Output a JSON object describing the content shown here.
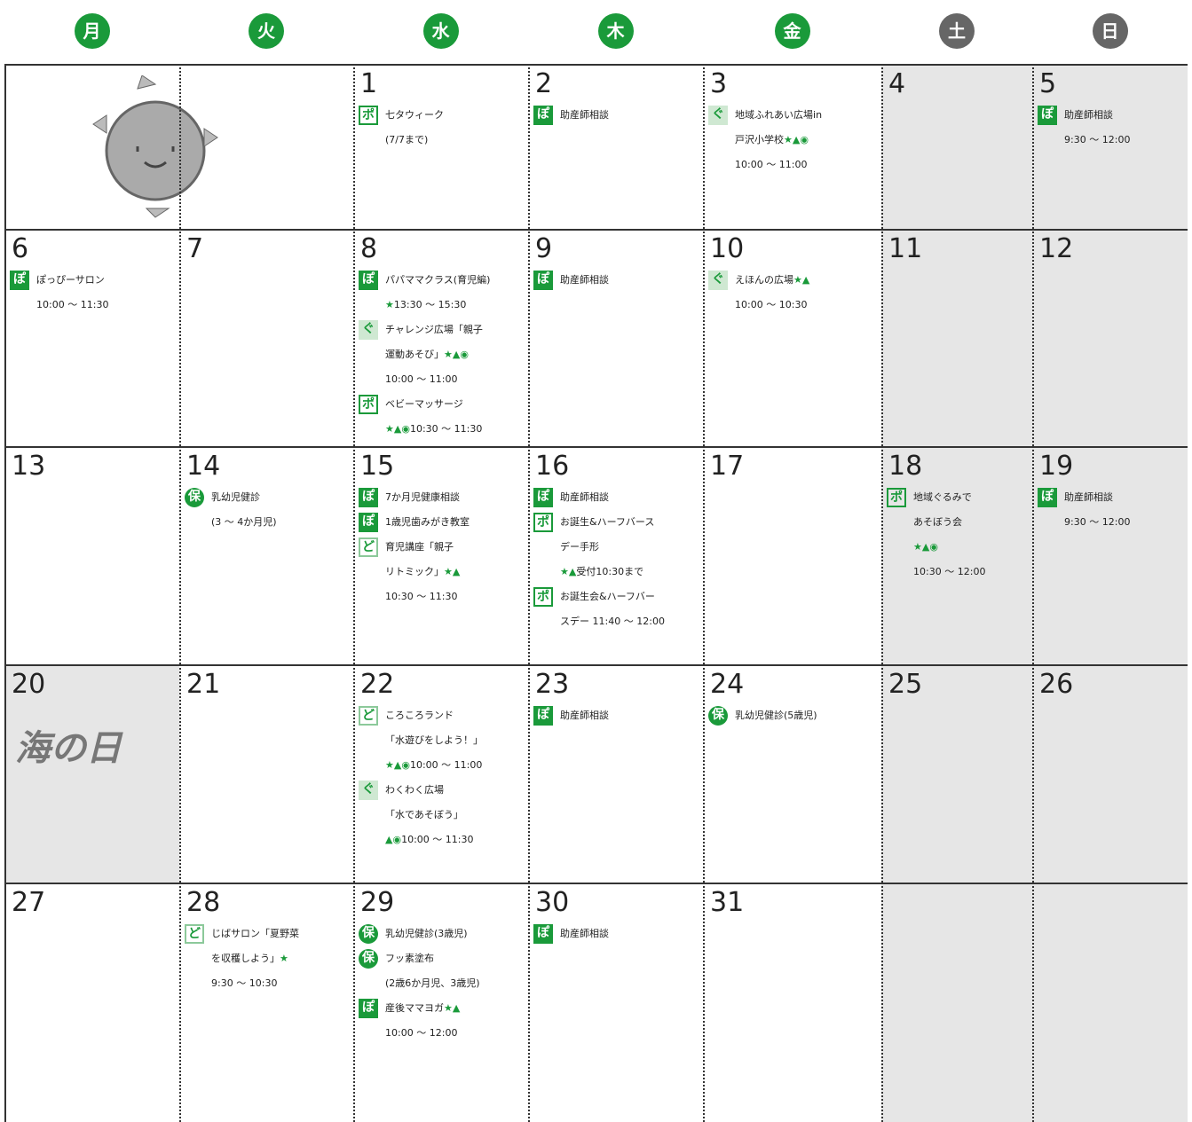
{
  "weekdays": [
    {
      "label": "月",
      "color": "#1a9a3a"
    },
    {
      "label": "火",
      "color": "#1a9a3a"
    },
    {
      "label": "水",
      "color": "#1a9a3a"
    },
    {
      "label": "木",
      "color": "#1a9a3a"
    },
    {
      "label": "金",
      "color": "#1a9a3a"
    },
    {
      "label": "土",
      "color": "#666666"
    },
    {
      "label": "日",
      "color": "#666666"
    }
  ],
  "weeks": [
    [
      {},
      {},
      {
        "day": "1",
        "events": [
          {
            "icon": "ポ",
            "kind": "outline",
            "lines": [
              "七タウィーク",
              "(7/7まで)"
            ]
          }
        ]
      },
      {
        "day": "2",
        "events": [
          {
            "icon": "ぽ",
            "kind": "solid",
            "lines": [
              "助産師相談"
            ]
          }
        ]
      },
      {
        "day": "3",
        "events": [
          {
            "icon": "ぐ",
            "kind": "light",
            "lines": [
              "地域ふれあい広場in",
              "戸沢小学校★▲◉",
              "10:00 ～ 11:00"
            ]
          }
        ]
      },
      {
        "day": "4",
        "shaded": true
      },
      {
        "day": "5",
        "shaded": true,
        "events": [
          {
            "icon": "ぽ",
            "kind": "solid",
            "lines": [
              "助産師相談",
              "9:30 ～ 12:00"
            ]
          }
        ]
      }
    ],
    [
      {
        "day": "6",
        "events": [
          {
            "icon": "ぽ",
            "kind": "solid",
            "lines": [
              "ぽっぴーサロン",
              "10:00 ～ 11:30"
            ]
          }
        ]
      },
      {
        "day": "7"
      },
      {
        "day": "8",
        "events": [
          {
            "icon": "ぽ",
            "kind": "solid",
            "lines": [
              "パパママクラス(育児編)",
              "★13:30 ～ 15:30"
            ]
          },
          {
            "icon": "ぐ",
            "kind": "light",
            "lines": [
              "チャレンジ広場「親子",
              "運動あそび」★▲◉",
              "10:00 ～ 11:00"
            ]
          },
          {
            "icon": "ポ",
            "kind": "outline",
            "lines": [
              "ベビーマッサージ",
              "★▲◉10:30 ～ 11:30"
            ]
          }
        ]
      },
      {
        "day": "9",
        "events": [
          {
            "icon": "ぽ",
            "kind": "solid",
            "lines": [
              "助産師相談"
            ]
          }
        ]
      },
      {
        "day": "10",
        "events": [
          {
            "icon": "ぐ",
            "kind": "light",
            "lines": [
              "えほんの広場★▲",
              "10:00 ～ 10:30"
            ]
          }
        ]
      },
      {
        "day": "11",
        "shaded": true
      },
      {
        "day": "12",
        "shaded": true
      }
    ],
    [
      {
        "day": "13"
      },
      {
        "day": "14",
        "events": [
          {
            "icon": "保",
            "kind": "circle",
            "lines": [
              "乳幼児健診",
              "(3 ～ 4か月児)"
            ]
          }
        ]
      },
      {
        "day": "15",
        "events": [
          {
            "icon": "ぽ",
            "kind": "solid",
            "lines": [
              "7か月児健康相談"
            ]
          },
          {
            "icon": "ぽ",
            "kind": "solid",
            "lines": [
              "1歳児歯みがき教室"
            ]
          },
          {
            "icon": "ど",
            "kind": "pale",
            "lines": [
              "育児講座「親子",
              "リトミック」★▲",
              "10:30 ～ 11:30"
            ]
          }
        ]
      },
      {
        "day": "16",
        "events": [
          {
            "icon": "ぽ",
            "kind": "solid",
            "lines": [
              "助産師相談"
            ]
          },
          {
            "icon": "ポ",
            "kind": "outline",
            "lines": [
              "お誕生&ハーフバース",
              "デー手形",
              "★▲受付10:30まで"
            ]
          },
          {
            "icon": "ポ",
            "kind": "outline",
            "lines": [
              "お誕生会&ハーフバー",
              "スデー 11:40 ～ 12:00"
            ]
          }
        ]
      },
      {
        "day": "17"
      },
      {
        "day": "18",
        "shaded": true,
        "events": [
          {
            "icon": "ポ",
            "kind": "outline",
            "lines": [
              "地域ぐるみで",
              "あそぼう会",
              "★▲◉",
              "10:30 ～ 12:00"
            ]
          }
        ]
      },
      {
        "day": "19",
        "shaded": true,
        "events": [
          {
            "icon": "ぽ",
            "kind": "solid",
            "lines": [
              "助産師相談",
              "9:30 ～ 12:00"
            ]
          }
        ]
      }
    ],
    [
      {
        "day": "20",
        "shaded": true,
        "illustration_text": "海の日"
      },
      {
        "day": "21"
      },
      {
        "day": "22",
        "events": [
          {
            "icon": "ど",
            "kind": "pale",
            "lines": [
              "ころころランド",
              "「水遊びをしよう！」",
              "★▲◉10:00 ～ 11:00"
            ]
          },
          {
            "icon": "ぐ",
            "kind": "light",
            "lines": [
              "わくわく広場",
              "「水であそぼう」",
              "▲◉10:00 ～ 11:30"
            ]
          }
        ]
      },
      {
        "day": "23",
        "events": [
          {
            "icon": "ぽ",
            "kind": "solid",
            "lines": [
              "助産師相談"
            ]
          }
        ]
      },
      {
        "day": "24",
        "events": [
          {
            "icon": "保",
            "kind": "circle",
            "lines": [
              "乳幼児健診(5歳児)"
            ]
          }
        ]
      },
      {
        "day": "25",
        "shaded": true
      },
      {
        "day": "26",
        "shaded": true
      }
    ],
    [
      {
        "day": "27"
      },
      {
        "day": "28",
        "events": [
          {
            "icon": "ど",
            "kind": "pale",
            "lines": [
              "じばサロン「夏野菜",
              "を収穫しよう」★",
              "9:30 ～ 10:30"
            ]
          }
        ]
      },
      {
        "day": "29",
        "events": [
          {
            "icon": "保",
            "kind": "circle",
            "lines": [
              "乳幼児健診(3歳児)"
            ]
          },
          {
            "icon": "保",
            "kind": "circle",
            "lines": [
              "フッ素塗布",
              "(2歳6か月児、3歳児)"
            ]
          },
          {
            "icon": "ぽ",
            "kind": "solid",
            "lines": [
              "産後ママヨガ★▲",
              "10:00 ～ 12:00"
            ]
          }
        ]
      },
      {
        "day": "30",
        "events": [
          {
            "icon": "ぽ",
            "kind": "solid",
            "lines": [
              "助産師相談"
            ]
          }
        ]
      },
      {
        "day": "31"
      },
      {
        "shaded": true
      },
      {
        "shaded": true
      }
    ]
  ]
}
